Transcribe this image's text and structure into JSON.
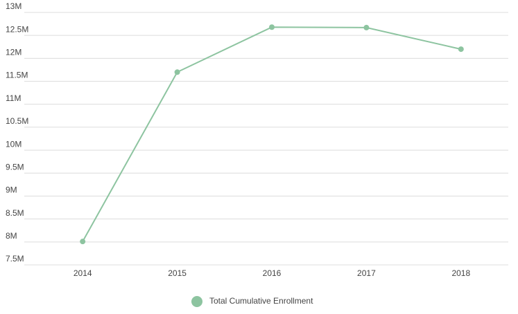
{
  "chart_data": {
    "type": "line",
    "categories": [
      "2014",
      "2015",
      "2016",
      "2017",
      "2018"
    ],
    "series": [
      {
        "name": "Total Cumulative Enrollment",
        "color": "#8dc4a0",
        "values": [
          8010000,
          11700000,
          12680000,
          12670000,
          12200000
        ]
      }
    ],
    "ylim": [
      7500000,
      13000000
    ],
    "yticks": [
      {
        "value": 7500000,
        "label": "7.5M"
      },
      {
        "value": 8000000,
        "label": "8M"
      },
      {
        "value": 8500000,
        "label": "8.5M"
      },
      {
        "value": 9000000,
        "label": "9M"
      },
      {
        "value": 9500000,
        "label": "9.5M"
      },
      {
        "value": 10000000,
        "label": "10M"
      },
      {
        "value": 10500000,
        "label": "10.5M"
      },
      {
        "value": 11000000,
        "label": "11M"
      },
      {
        "value": 11500000,
        "label": "11.5M"
      },
      {
        "value": 12000000,
        "label": "12M"
      },
      {
        "value": 12500000,
        "label": "12.5M"
      },
      {
        "value": 13000000,
        "label": "13M"
      }
    ],
    "grid": true,
    "legend": "bottom"
  }
}
